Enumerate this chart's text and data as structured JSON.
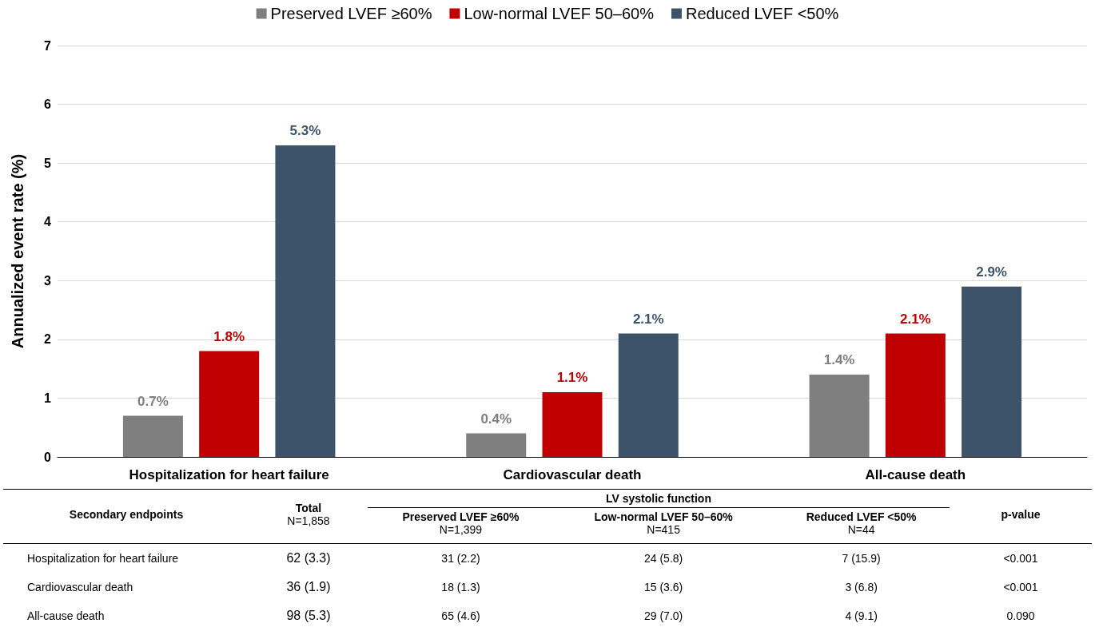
{
  "chart_data": [
    {
      "type": "bar",
      "ylabel": "Annualized event rate (%)",
      "categories": [
        "Hospitalization for heart failure",
        "Cardiovascular death",
        "All-cause death"
      ],
      "series": [
        {
          "name": "Preserved LVEF ≥60%",
          "color": "#7f7f7f",
          "values": [
            0.7,
            0.4,
            1.4
          ],
          "value_labels": [
            "0.7%",
            "0.4%",
            "1.4%"
          ]
        },
        {
          "name": "Low-normal LVEF 50–60%",
          "color": "#c00000",
          "values": [
            1.8,
            1.1,
            2.1
          ],
          "value_labels": [
            "1.8%",
            "1.1%",
            "2.1%"
          ]
        },
        {
          "name": "Reduced LVEF <50%",
          "color": "#3d5369",
          "values": [
            5.3,
            2.1,
            2.9
          ],
          "value_labels": [
            "5.3%",
            "2.1%",
            "2.9%"
          ]
        }
      ],
      "ylim": [
        0,
        7
      ],
      "yticks": [
        0,
        1,
        2,
        3,
        4,
        5,
        6,
        7
      ],
      "grid": "y",
      "legend": "top"
    },
    {
      "type": "other",
      "title": "LV systolic function",
      "categories": [
        "Secondary endpoints",
        "Total\nN=1,858",
        "Preserved LVEF ≥60%\nN=1,399",
        "Low-normal LVEF 50–60%\nN=415",
        "Reduced LVEF <50%\nN=44",
        "p-value"
      ],
      "y_categories": [
        "Hospitalization for heart failure",
        "Cardiovascular death",
        "All-cause death"
      ],
      "cell_labels": [
        [
          "62 (3.3)",
          "31 (2.2)",
          "24 (5.8)",
          "7 (15.9)",
          "<0.001"
        ],
        [
          "36 (1.9)",
          "18 (1.3)",
          "15 (3.6)",
          "3 (6.8)",
          "<0.001"
        ],
        [
          "98 (5.3)",
          "65 (4.6)",
          "29 (7.0)",
          "4 (9.1)",
          "0.090"
        ]
      ]
    }
  ]
}
